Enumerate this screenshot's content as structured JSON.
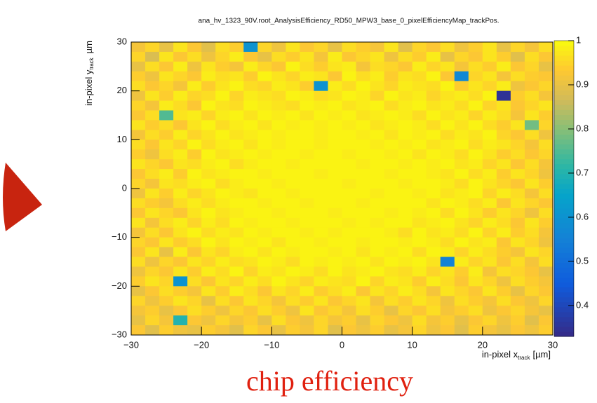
{
  "chart_data": {
    "type": "heatmap",
    "title": "ana_hv_1323_90V.root_AnalysisEfficiency_RD50_MPW3_base_0_pixelEfficiencyMap_trackPos.",
    "x_label": {
      "main": "in-pixel x",
      "sub": "track",
      "unit": "[µm]"
    },
    "y_label": {
      "main": "in-pixel y",
      "sub": "track",
      "unit": "µm"
    },
    "caption": "chip efficiency",
    "colormap": "bird",
    "xlim": [
      -30,
      30
    ],
    "ylim": [
      -30,
      30
    ],
    "xticks": [
      {
        "value": -30,
        "label": "−30"
      },
      {
        "value": -20,
        "label": "−20"
      },
      {
        "value": -10,
        "label": "−10"
      },
      0,
      10,
      20,
      30
    ],
    "yticks": [
      {
        "value": -30,
        "label": "−30"
      },
      {
        "value": -20,
        "label": "−20"
      },
      {
        "value": -10,
        "label": "−10"
      },
      0,
      10,
      20,
      30
    ],
    "zlim": [
      0.33,
      1
    ],
    "zticks": [
      0.4,
      0.5,
      0.6,
      0.7,
      0.8,
      0.9,
      1
    ],
    "values": [
      [
        0.92,
        0.95,
        0.9,
        0.97,
        0.93,
        0.89,
        0.96,
        0.94,
        0.6,
        0.95,
        0.91,
        0.97,
        0.93,
        0.95,
        0.9,
        0.96,
        0.94,
        0.92,
        0.97,
        0.89,
        0.95,
        0.93,
        0.96,
        0.91,
        0.94,
        0.97,
        0.9,
        0.95,
        0.92,
        0.96
      ],
      [
        0.95,
        0.88,
        0.97,
        0.93,
        0.96,
        0.91,
        0.95,
        0.98,
        0.93,
        0.9,
        0.96,
        0.94,
        0.97,
        0.92,
        0.98,
        0.93,
        0.95,
        0.97,
        0.91,
        0.96,
        0.94,
        0.98,
        0.9,
        0.95,
        0.93,
        0.97,
        0.94,
        0.89,
        0.96,
        0.93
      ],
      [
        0.9,
        0.96,
        0.93,
        0.98,
        0.91,
        0.97,
        0.94,
        0.92,
        0.98,
        0.95,
        0.93,
        0.99,
        0.96,
        0.94,
        0.97,
        0.98,
        0.92,
        0.96,
        0.95,
        0.93,
        0.98,
        0.95,
        0.97,
        0.92,
        0.96,
        0.94,
        0.98,
        0.93,
        0.95,
        0.9
      ],
      [
        0.94,
        0.91,
        0.97,
        0.95,
        0.93,
        0.98,
        0.96,
        0.97,
        0.94,
        0.99,
        0.97,
        0.95,
        0.98,
        0.97,
        0.93,
        0.99,
        0.96,
        0.98,
        0.94,
        0.97,
        0.96,
        0.99,
        0.93,
        0.57,
        0.95,
        0.97,
        0.92,
        0.96,
        0.94,
        0.93
      ],
      [
        0.96,
        0.93,
        0.95,
        0.92,
        0.98,
        0.94,
        0.97,
        0.99,
        0.96,
        0.95,
        0.98,
        0.97,
        0.94,
        0.6,
        0.98,
        0.96,
        0.99,
        0.97,
        0.95,
        0.98,
        0.97,
        0.96,
        0.99,
        0.94,
        0.97,
        0.95,
        0.98,
        0.91,
        0.93,
        0.95
      ],
      [
        0.91,
        0.97,
        0.94,
        0.98,
        0.95,
        0.96,
        0.99,
        0.95,
        0.98,
        0.97,
        0.96,
        0.99,
        0.98,
        0.96,
        0.97,
        0.99,
        0.98,
        0.95,
        0.99,
        0.97,
        0.98,
        0.95,
        0.97,
        0.98,
        0.96,
        0.99,
        0.35,
        0.94,
        0.96,
        0.92
      ],
      [
        0.95,
        0.92,
        0.98,
        0.96,
        0.93,
        0.99,
        0.97,
        0.96,
        0.99,
        0.98,
        0.97,
        0.96,
        0.99,
        0.98,
        0.99,
        0.97,
        0.98,
        0.99,
        0.96,
        0.98,
        0.99,
        0.97,
        0.98,
        0.96,
        0.99,
        0.95,
        0.97,
        0.93,
        0.95,
        0.97
      ],
      [
        0.93,
        0.96,
        0.75,
        0.97,
        0.98,
        0.95,
        0.98,
        0.99,
        0.97,
        0.99,
        0.98,
        0.99,
        0.97,
        0.99,
        0.98,
        0.99,
        0.97,
        0.98,
        0.99,
        0.98,
        0.96,
        0.99,
        0.97,
        0.98,
        0.95,
        0.98,
        0.96,
        0.92,
        0.97,
        0.94
      ],
      [
        0.97,
        0.94,
        0.96,
        0.93,
        0.97,
        0.99,
        0.96,
        0.98,
        0.99,
        0.97,
        0.99,
        0.98,
        0.99,
        0.98,
        0.99,
        0.98,
        0.99,
        0.97,
        0.98,
        0.99,
        0.98,
        0.96,
        0.99,
        0.97,
        0.99,
        0.96,
        0.94,
        0.97,
        0.78,
        0.95
      ],
      [
        0.92,
        0.96,
        0.94,
        0.98,
        0.95,
        0.97,
        0.99,
        0.97,
        0.98,
        0.99,
        0.98,
        0.99,
        0.99,
        0.98,
        0.99,
        0.99,
        0.98,
        0.99,
        0.97,
        0.99,
        0.98,
        0.99,
        0.96,
        0.98,
        0.97,
        0.99,
        0.95,
        0.93,
        0.96,
        0.91
      ],
      [
        0.96,
        0.93,
        0.97,
        0.95,
        0.99,
        0.96,
        0.98,
        0.99,
        0.97,
        0.99,
        0.98,
        0.99,
        0.99,
        0.98,
        0.99,
        0.99,
        0.99,
        0.98,
        0.99,
        0.98,
        0.99,
        0.97,
        0.98,
        0.99,
        0.96,
        0.98,
        0.97,
        0.95,
        0.92,
        0.96
      ],
      [
        0.94,
        0.91,
        0.96,
        0.98,
        0.94,
        0.99,
        0.97,
        0.98,
        0.99,
        0.98,
        0.99,
        0.99,
        0.98,
        0.99,
        0.99,
        0.98,
        0.99,
        0.99,
        0.98,
        0.99,
        0.97,
        0.99,
        0.98,
        0.96,
        0.99,
        0.97,
        0.94,
        0.96,
        0.93,
        0.95
      ],
      [
        0.97,
        0.95,
        0.93,
        0.97,
        0.96,
        0.98,
        0.99,
        0.96,
        0.98,
        0.99,
        0.99,
        0.98,
        0.99,
        0.99,
        0.99,
        0.99,
        0.98,
        0.99,
        0.99,
        0.98,
        0.99,
        0.98,
        0.99,
        0.97,
        0.98,
        0.95,
        0.97,
        0.93,
        0.96,
        0.92
      ],
      [
        0.93,
        0.96,
        0.98,
        0.94,
        0.99,
        0.97,
        0.98,
        0.99,
        0.99,
        0.98,
        0.99,
        0.99,
        0.99,
        0.98,
        0.99,
        0.99,
        0.99,
        0.99,
        0.98,
        0.99,
        0.99,
        0.98,
        0.97,
        0.99,
        0.96,
        0.98,
        0.94,
        0.97,
        0.95,
        0.91
      ],
      [
        0.95,
        0.92,
        0.97,
        0.96,
        0.98,
        0.99,
        0.96,
        0.98,
        0.99,
        0.99,
        0.98,
        0.99,
        0.99,
        0.99,
        0.99,
        0.98,
        0.99,
        0.99,
        0.99,
        0.98,
        0.99,
        0.99,
        0.98,
        0.96,
        0.99,
        0.97,
        0.95,
        0.93,
        0.97,
        0.94
      ],
      [
        0.91,
        0.97,
        0.94,
        0.98,
        0.95,
        0.97,
        0.99,
        0.98,
        0.97,
        0.99,
        0.99,
        0.98,
        0.99,
        0.99,
        0.99,
        0.99,
        0.99,
        0.98,
        0.99,
        0.99,
        0.98,
        0.99,
        0.97,
        0.98,
        0.99,
        0.95,
        0.98,
        0.96,
        0.92,
        0.96
      ],
      [
        0.96,
        0.94,
        0.92,
        0.96,
        0.98,
        0.96,
        0.98,
        0.99,
        0.99,
        0.98,
        0.99,
        0.99,
        0.98,
        0.99,
        0.99,
        0.99,
        0.98,
        0.99,
        0.99,
        0.99,
        0.99,
        0.97,
        0.99,
        0.98,
        0.96,
        0.98,
        0.93,
        0.97,
        0.95,
        0.93
      ],
      [
        0.93,
        0.97,
        0.95,
        0.93,
        0.97,
        0.99,
        0.97,
        0.98,
        0.99,
        0.99,
        0.98,
        0.99,
        0.99,
        0.99,
        0.98,
        0.99,
        0.99,
        0.99,
        0.98,
        0.99,
        0.98,
        0.99,
        0.96,
        0.99,
        0.97,
        0.94,
        0.97,
        0.95,
        0.91,
        0.96
      ],
      [
        0.97,
        0.92,
        0.96,
        0.98,
        0.95,
        0.98,
        0.96,
        0.99,
        0.98,
        0.99,
        0.99,
        0.98,
        0.99,
        0.99,
        0.99,
        0.98,
        0.99,
        0.98,
        0.99,
        0.99,
        0.97,
        0.98,
        0.99,
        0.97,
        0.95,
        0.98,
        0.96,
        0.93,
        0.97,
        0.94
      ],
      [
        0.92,
        0.96,
        0.93,
        0.97,
        0.99,
        0.96,
        0.98,
        0.97,
        0.99,
        0.98,
        0.99,
        0.99,
        0.98,
        0.99,
        0.98,
        0.99,
        0.99,
        0.99,
        0.98,
        0.96,
        0.99,
        0.97,
        0.98,
        0.96,
        0.99,
        0.95,
        0.98,
        0.94,
        0.96,
        0.92
      ],
      [
        0.95,
        0.93,
        0.97,
        0.94,
        0.96,
        0.99,
        0.97,
        0.99,
        0.98,
        0.99,
        0.97,
        0.99,
        0.99,
        0.98,
        0.99,
        0.99,
        0.98,
        0.99,
        0.99,
        0.98,
        0.99,
        0.98,
        0.96,
        0.99,
        0.97,
        0.98,
        0.93,
        0.97,
        0.95,
        0.91
      ],
      [
        0.93,
        0.97,
        0.9,
        0.98,
        0.93,
        0.97,
        0.95,
        0.98,
        0.99,
        0.97,
        0.99,
        0.98,
        0.99,
        0.99,
        0.98,
        0.99,
        0.97,
        0.99,
        0.98,
        0.99,
        0.96,
        0.99,
        0.98,
        0.95,
        0.98,
        0.96,
        0.94,
        0.92,
        0.97,
        0.95
      ],
      [
        0.96,
        0.91,
        0.95,
        0.93,
        0.97,
        0.95,
        0.98,
        0.96,
        0.97,
        0.99,
        0.98,
        0.96,
        0.99,
        0.98,
        0.99,
        0.98,
        0.99,
        0.97,
        0.99,
        0.98,
        0.99,
        0.97,
        0.55,
        0.98,
        0.95,
        0.97,
        0.93,
        0.96,
        0.92,
        0.96
      ],
      [
        0.91,
        0.95,
        0.93,
        0.97,
        0.94,
        0.98,
        0.96,
        0.99,
        0.95,
        0.98,
        0.97,
        0.99,
        0.98,
        0.96,
        0.99,
        0.97,
        0.98,
        0.99,
        0.97,
        0.96,
        0.98,
        0.95,
        0.97,
        0.94,
        0.98,
        0.92,
        0.96,
        0.95,
        0.93,
        0.9
      ],
      [
        0.94,
        0.97,
        0.95,
        0.6,
        0.96,
        0.93,
        0.97,
        0.95,
        0.98,
        0.96,
        0.99,
        0.97,
        0.95,
        0.98,
        0.97,
        0.96,
        0.99,
        0.95,
        0.98,
        0.97,
        0.94,
        0.98,
        0.96,
        0.93,
        0.97,
        0.95,
        0.91,
        0.96,
        0.94,
        0.92
      ],
      [
        0.9,
        0.93,
        0.96,
        0.94,
        0.92,
        0.97,
        0.94,
        0.98,
        0.96,
        0.93,
        0.97,
        0.95,
        0.98,
        0.94,
        0.96,
        0.98,
        0.93,
        0.97,
        0.95,
        0.98,
        0.96,
        0.92,
        0.97,
        0.95,
        0.93,
        0.97,
        0.94,
        0.9,
        0.95,
        0.93
      ],
      [
        0.95,
        0.91,
        0.94,
        0.97,
        0.95,
        0.9,
        0.96,
        0.93,
        0.97,
        0.95,
        0.92,
        0.96,
        0.94,
        0.97,
        0.93,
        0.95,
        0.97,
        0.92,
        0.96,
        0.94,
        0.97,
        0.95,
        0.91,
        0.96,
        0.94,
        0.92,
        0.96,
        0.93,
        0.91,
        0.95
      ],
      [
        0.92,
        0.94,
        0.9,
        0.93,
        0.96,
        0.94,
        0.91,
        0.95,
        0.93,
        0.96,
        0.94,
        0.91,
        0.97,
        0.93,
        0.95,
        0.92,
        0.96,
        0.94,
        0.9,
        0.95,
        0.93,
        0.96,
        0.92,
        0.94,
        0.96,
        0.91,
        0.93,
        0.95,
        0.92,
        0.9
      ],
      [
        0.9,
        0.95,
        0.92,
        0.7,
        0.93,
        0.91,
        0.95,
        0.92,
        0.94,
        0.9,
        0.96,
        0.93,
        0.91,
        0.95,
        0.92,
        0.94,
        0.9,
        0.95,
        0.93,
        0.91,
        0.96,
        0.92,
        0.94,
        0.9,
        0.93,
        0.95,
        0.91,
        0.94,
        0.89,
        0.93
      ],
      [
        0.93,
        0.89,
        0.94,
        0.91,
        0.9,
        0.94,
        0.92,
        0.89,
        0.95,
        0.93,
        0.9,
        0.94,
        0.92,
        0.95,
        0.89,
        0.93,
        0.91,
        0.94,
        0.9,
        0.92,
        0.95,
        0.91,
        0.93,
        0.89,
        0.94,
        0.92,
        0.9,
        0.93,
        0.91,
        0.94
      ]
    ]
  }
}
